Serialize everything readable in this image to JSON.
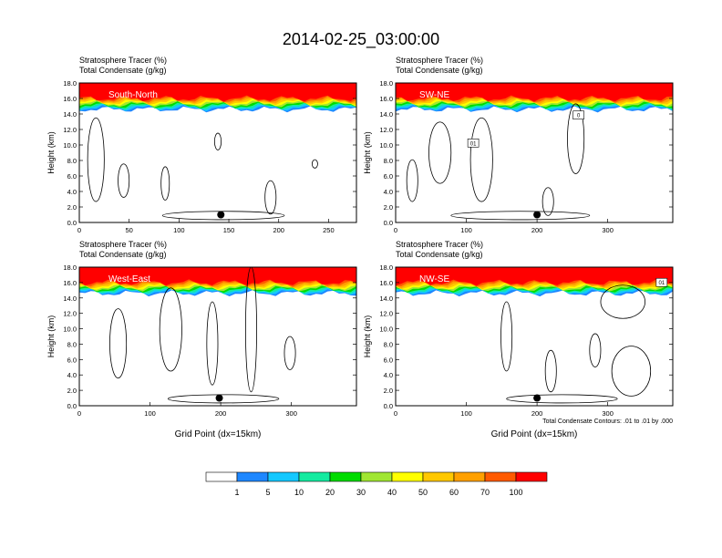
{
  "figure_title": "2014-02-25_03:00:00",
  "footnote": "Total Condensate Contours: .01 to .01 by .000",
  "colors": {
    "shading": [
      "#ffffff",
      "#1e87ff",
      "#14c8ff",
      "#14eba0",
      "#00dc00",
      "#a0e632",
      "#ffff00",
      "#ffc800",
      "#ffa000",
      "#ff5a00",
      "#ff0000"
    ],
    "contour": "#000000",
    "background": "#ffffff"
  },
  "colorbar": {
    "labels": [
      "1",
      "5",
      "10",
      "20",
      "30",
      "40",
      "50",
      "60",
      "70",
      "100"
    ],
    "levels": [
      1,
      5,
      10,
      20,
      30,
      40,
      50,
      60,
      70,
      100
    ]
  },
  "chart_data": [
    {
      "type": "heatmap",
      "panel": "South-North",
      "title_line1": "Stratosphere Tracer   (%)",
      "title_line2": "Total Condensate   (g/kg)",
      "ylabel": "Height (km)",
      "xlabel": "",
      "xlim": [
        0,
        278
      ],
      "ylim": [
        0,
        18
      ],
      "xticks": [
        "0",
        "50",
        "100",
        "150",
        "200",
        "250"
      ],
      "xtick_values": [
        0,
        50,
        100,
        150,
        200,
        250
      ],
      "yticks": [
        "0.0",
        "2.0",
        "4.0",
        "6.0",
        "8.0",
        "10.0",
        "12.0",
        "14.0",
        "16.0",
        "18.0"
      ],
      "tracer_top_km": 16.0,
      "tracer_edge_km": 14.6,
      "marker": {
        "x": 142,
        "y": 1.0
      },
      "contour_labels": []
    },
    {
      "type": "heatmap",
      "panel": "SW-NE",
      "title_line1": "Stratosphere Tracer   (%)",
      "title_line2": "Total Condensate   (g/kg)",
      "ylabel": "Height (km)",
      "xlabel": "",
      "xlim": [
        0,
        392
      ],
      "ylim": [
        0,
        18
      ],
      "xticks": [
        "0",
        "100",
        "200",
        "300"
      ],
      "xtick_values": [
        0,
        100,
        200,
        300
      ],
      "yticks": [
        "0.0",
        "2.0",
        "4.0",
        "6.0",
        "8.0",
        "10.0",
        "12.0",
        "14.0",
        "16.0",
        "18.0"
      ],
      "tracer_top_km": 16.0,
      "tracer_edge_km": 14.6,
      "marker": {
        "x": 200,
        "y": 1.0
      },
      "contour_labels": [
        "0",
        "01"
      ]
    },
    {
      "type": "heatmap",
      "panel": "West-East",
      "title_line1": "Stratosphere Tracer   (%)",
      "title_line2": "Total Condensate   (g/kg)",
      "ylabel": "Height (km)",
      "xlabel": "Grid Point (dx=15km)",
      "xlim": [
        0,
        392
      ],
      "ylim": [
        0,
        18
      ],
      "xticks": [
        "0",
        "100",
        "200",
        "300"
      ],
      "xtick_values": [
        0,
        100,
        200,
        300
      ],
      "yticks": [
        "0.0",
        "2.0",
        "4.0",
        "6.0",
        "8.0",
        "10.0",
        "12.0",
        "14.0",
        "16.0",
        "18.0"
      ],
      "tracer_top_km": 16.0,
      "tracer_edge_km": 14.6,
      "marker": {
        "x": 198,
        "y": 1.0
      },
      "contour_labels": []
    },
    {
      "type": "heatmap",
      "panel": "NW-SE",
      "title_line1": "Stratosphere Tracer   (%)",
      "title_line2": "Total Condensate   (g/kg)",
      "ylabel": "Height (km)",
      "xlabel": "Grid Point (dx=15km)",
      "xlim": [
        0,
        392
      ],
      "ylim": [
        0,
        18
      ],
      "xticks": [
        "0",
        "100",
        "200",
        "300"
      ],
      "xtick_values": [
        0,
        100,
        200,
        300
      ],
      "yticks": [
        "0.0",
        "2.0",
        "4.0",
        "6.0",
        "8.0",
        "10.0",
        "12.0",
        "14.0",
        "16.0",
        "18.0"
      ],
      "tracer_top_km": 16.0,
      "tracer_edge_km": 14.6,
      "marker": {
        "x": 200,
        "y": 1.0
      },
      "contour_labels": [
        "01"
      ]
    }
  ]
}
